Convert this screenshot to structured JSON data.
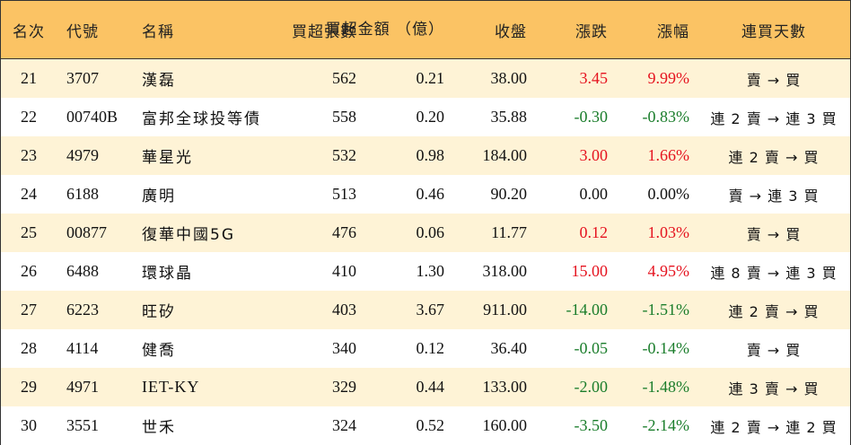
{
  "headers": {
    "rank": "名次",
    "code": "代號",
    "name": "名稱",
    "volume": "買超張數",
    "amount_line1": "買超金額",
    "amount_line2": "（億）",
    "close": "收盤",
    "change": "漲跌",
    "change_pct": "漲幅",
    "streak": "連買天數"
  },
  "colors": {
    "header_bg": "#fbc364",
    "odd_row_bg": "#fef3d6",
    "up": "#e5131f",
    "down": "#1a7d2b"
  },
  "rows": [
    {
      "rank": "21",
      "code": "3707",
      "name": "漢磊",
      "volume": "562",
      "amount": "0.21",
      "close": "38.00",
      "change": "3.45",
      "change_pct": "9.99%",
      "streak": "賣 → 買",
      "dir": "up"
    },
    {
      "rank": "22",
      "code": "00740B",
      "name": "富邦全球投等債",
      "volume": "558",
      "amount": "0.20",
      "close": "35.88",
      "change": "-0.30",
      "change_pct": "-0.83%",
      "streak": "連 2 賣 → 連 3 買",
      "dir": "down"
    },
    {
      "rank": "23",
      "code": "4979",
      "name": "華星光",
      "volume": "532",
      "amount": "0.98",
      "close": "184.00",
      "change": "3.00",
      "change_pct": "1.66%",
      "streak": "連 2 賣 → 買",
      "dir": "up"
    },
    {
      "rank": "24",
      "code": "6188",
      "name": "廣明",
      "volume": "513",
      "amount": "0.46",
      "close": "90.20",
      "change": "0.00",
      "change_pct": "0.00%",
      "streak": "賣 → 連 3 買",
      "dir": "flat"
    },
    {
      "rank": "25",
      "code": "00877",
      "name": "復華中國5G",
      "volume": "476",
      "amount": "0.06",
      "close": "11.77",
      "change": "0.12",
      "change_pct": "1.03%",
      "streak": "賣 → 買",
      "dir": "up"
    },
    {
      "rank": "26",
      "code": "6488",
      "name": "環球晶",
      "volume": "410",
      "amount": "1.30",
      "close": "318.00",
      "change": "15.00",
      "change_pct": "4.95%",
      "streak": "連 8 賣 → 連 3 買",
      "dir": "up"
    },
    {
      "rank": "27",
      "code": "6223",
      "name": "旺矽",
      "volume": "403",
      "amount": "3.67",
      "close": "911.00",
      "change": "-14.00",
      "change_pct": "-1.51%",
      "streak": "連 2 賣 → 買",
      "dir": "down"
    },
    {
      "rank": "28",
      "code": "4114",
      "name": "健喬",
      "volume": "340",
      "amount": "0.12",
      "close": "36.40",
      "change": "-0.05",
      "change_pct": "-0.14%",
      "streak": "賣 → 買",
      "dir": "down"
    },
    {
      "rank": "29",
      "code": "4971",
      "name": "IET-KY",
      "volume": "329",
      "amount": "0.44",
      "close": "133.00",
      "change": "-2.00",
      "change_pct": "-1.48%",
      "streak": "連 3 賣 → 買",
      "dir": "down"
    },
    {
      "rank": "30",
      "code": "3551",
      "name": "世禾",
      "volume": "324",
      "amount": "0.52",
      "close": "160.00",
      "change": "-3.50",
      "change_pct": "-2.14%",
      "streak": "連 2 賣 → 連 2 買",
      "dir": "down"
    }
  ]
}
